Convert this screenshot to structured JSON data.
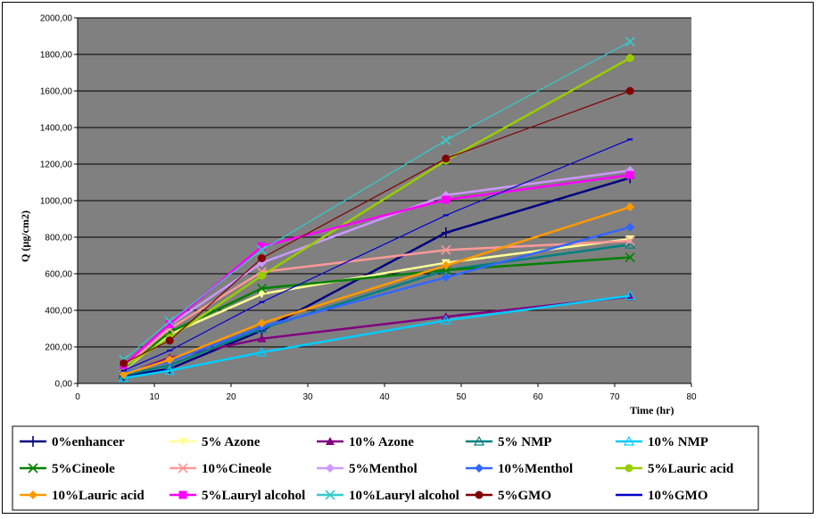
{
  "chart_data": {
    "type": "line",
    "xlabel": "Time (hr)",
    "ylabel": "Q  (µg/cm2)",
    "xlim": [
      0,
      80
    ],
    "ylim": [
      0,
      2000
    ],
    "x_ticks": [
      "0",
      "10",
      "20",
      "30",
      "40",
      "50",
      "60",
      "70",
      "80"
    ],
    "y_ticks": [
      "0,00",
      "200,00",
      "400,00",
      "600,00",
      "800,00",
      "1000,00",
      "1200,00",
      "1400,00",
      "1600,00",
      "1800,00",
      "2000,00"
    ],
    "grid": true,
    "legend_position": "bottom",
    "plot_background": "#808080",
    "series": [
      {
        "name": "0%enhancer",
        "color": "#000080",
        "marker": "plus",
        "x": [
          6,
          12,
          24,
          48,
          72
        ],
        "y": [
          40,
          80,
          290,
          825,
          1125
        ]
      },
      {
        "name": "5% Azone",
        "color": "#FFFF99",
        "marker": "tri-down",
        "x": [
          6,
          12,
          24,
          48,
          72
        ],
        "y": [
          75,
          270,
          490,
          660,
          790
        ]
      },
      {
        "name": "10% Azone",
        "color": "#800080",
        "marker": "triangle",
        "x": [
          6,
          12,
          24,
          48,
          72
        ],
        "y": [
          50,
          140,
          245,
          365,
          475
        ]
      },
      {
        "name": "5% NMP",
        "color": "#008080",
        "marker": "triangle-open",
        "x": [
          6,
          12,
          24,
          48,
          72
        ],
        "y": [
          45,
          100,
          300,
          620,
          760
        ]
      },
      {
        "name": "10% NMP",
        "color": "#00CCFF",
        "marker": "triangle-open",
        "x": [
          6,
          12,
          24,
          48,
          72
        ],
        "y": [
          30,
          70,
          170,
          345,
          480
        ]
      },
      {
        "name": "5%Cineole",
        "color": "#008000",
        "marker": "x",
        "x": [
          6,
          12,
          24,
          48,
          72
        ],
        "y": [
          80,
          280,
          520,
          620,
          690
        ]
      },
      {
        "name": "10%Cineole",
        "color": "#FF9999",
        "marker": "x",
        "x": [
          6,
          12,
          24,
          48,
          72
        ],
        "y": [
          85,
          300,
          610,
          730,
          780
        ]
      },
      {
        "name": "5%Menthol",
        "color": "#CC99FF",
        "marker": "diamond",
        "x": [
          6,
          12,
          24,
          48,
          72
        ],
        "y": [
          100,
          320,
          660,
          1030,
          1165
        ]
      },
      {
        "name": "10%Menthol",
        "color": "#3366FF",
        "marker": "diamond",
        "x": [
          6,
          12,
          24,
          48,
          72
        ],
        "y": [
          60,
          120,
          310,
          580,
          855
        ]
      },
      {
        "name": "5%Lauric acid",
        "color": "#99CC00",
        "marker": "circle",
        "x": [
          6,
          12,
          24,
          48,
          72
        ],
        "y": [
          90,
          250,
          590,
          1220,
          1780
        ]
      },
      {
        "name": "10%Lauric acid",
        "color": "#FF9900",
        "marker": "diamond",
        "x": [
          6,
          12,
          24,
          48,
          72
        ],
        "y": [
          50,
          130,
          330,
          645,
          965
        ]
      },
      {
        "name": "5%Lauryl alcohol",
        "color": "#FF00FF",
        "marker": "square",
        "x": [
          6,
          12,
          24,
          48,
          72
        ],
        "y": [
          100,
          325,
          750,
          1005,
          1140
        ]
      },
      {
        "name": "10%Lauryl alcohol",
        "color": "#33CCCC",
        "marker": "x",
        "x": [
          6,
          12,
          24,
          48,
          72
        ],
        "y": [
          130,
          340,
          730,
          1330,
          1870
        ]
      },
      {
        "name": "5%GMO",
        "color": "#800000",
        "marker": "circle",
        "x": [
          6,
          12,
          24,
          48,
          72
        ],
        "y": [
          110,
          235,
          685,
          1230,
          1600
        ]
      },
      {
        "name": "10%GMO",
        "color": "#0000CC",
        "marker": "dash",
        "x": [
          6,
          12,
          24,
          48,
          72
        ],
        "y": [
          70,
          180,
          445,
          920,
          1335
        ]
      }
    ]
  }
}
